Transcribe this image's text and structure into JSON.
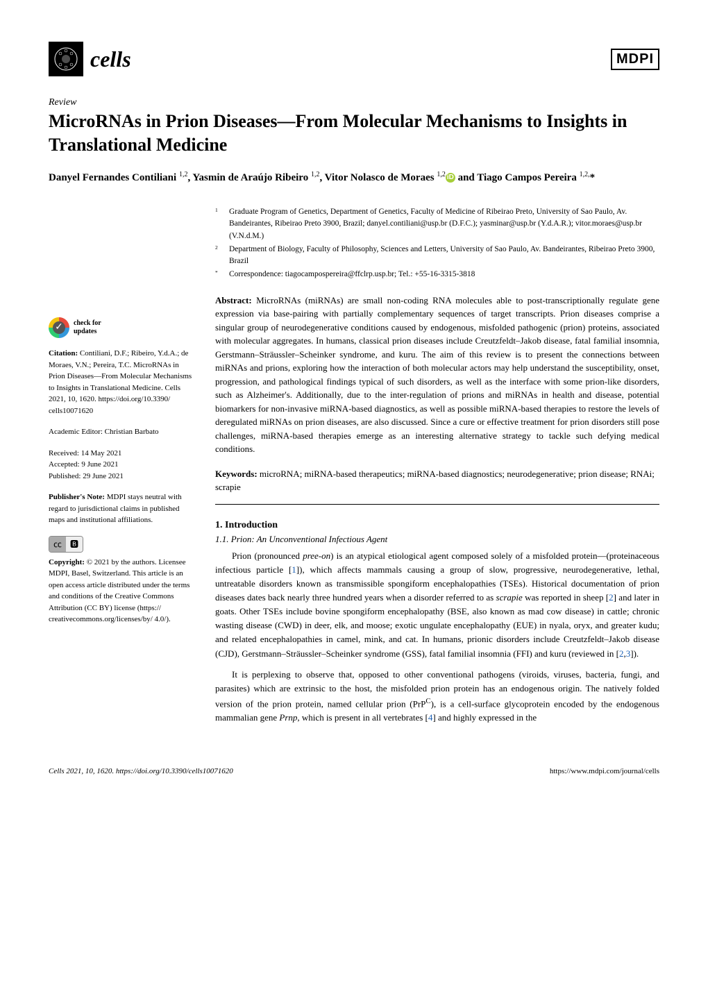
{
  "journal": {
    "name": "cells"
  },
  "publisher": {
    "name": "MDPI"
  },
  "article_type": "Review",
  "title": "MicroRNAs in Prion Diseases—From Molecular Mechanisms to Insights in Translational Medicine",
  "authors_html": "Danyel Fernandes Contiliani <sup>1,2</sup>, Yasmin de Araújo Ribeiro <sup>1,2</sup>, Vitor Nolasco de Moraes <sup>1,2</sup><span class='orcid'>iD</span> and Tiago Campos Pereira <sup>1,2,</sup>*",
  "affiliations": [
    {
      "num": "1",
      "text": "Graduate Program of Genetics, Department of Genetics, Faculty of Medicine of Ribeirao Preto, University of Sao Paulo, Av. Bandeirantes, Ribeirao Preto 3900, Brazil; danyel.contiliani@usp.br (D.F.C.); yasminar@usp.br (Y.d.A.R.); vitor.moraes@usp.br (V.N.d.M.)"
    },
    {
      "num": "2",
      "text": "Department of Biology, Faculty of Philosophy, Sciences and Letters, University of Sao Paulo, Av. Bandeirantes, Ribeirao Preto 3900, Brazil"
    },
    {
      "num": "*",
      "text": "Correspondence: tiagocampospereira@ffclrp.usp.br; Tel.: +55-16-3315-3818"
    }
  ],
  "abstract_label": "Abstract:",
  "abstract": "MicroRNAs (miRNAs) are small non-coding RNA molecules able to post-transcriptionally regulate gene expression via base-pairing with partially complementary sequences of target transcripts. Prion diseases comprise a singular group of neurodegenerative conditions caused by endogenous, misfolded pathogenic (prion) proteins, associated with molecular aggregates. In humans, classical prion diseases include Creutzfeldt–Jakob disease, fatal familial insomnia, Gerstmann–Sträussler–Scheinker syndrome, and kuru. The aim of this review is to present the connections between miRNAs and prions, exploring how the interaction of both molecular actors may help understand the susceptibility, onset, progression, and pathological findings typical of such disorders, as well as the interface with some prion-like disorders, such as Alzheimer's. Additionally, due to the inter-regulation of prions and miRNAs in health and disease, potential biomarkers for non-invasive miRNA-based diagnostics, as well as possible miRNA-based therapies to restore the levels of deregulated miRNAs on prion diseases, are also discussed. Since a cure or effective treatment for prion disorders still pose challenges, miRNA-based therapies emerge as an interesting alternative strategy to tackle such defying medical conditions.",
  "keywords_label": "Keywords:",
  "keywords": "microRNA; miRNA-based therapeutics; miRNA-based diagnostics; neurodegenerative; prion disease; RNAi; scrapie",
  "section1": {
    "heading": "1. Introduction",
    "sub": "1.1. Prion: An Unconventional Infectious Agent"
  },
  "para1": "Prion (pronounced pree-on) is an atypical etiological agent composed solely of a misfolded protein—(proteinaceous infectious particle [1]), which affects mammals causing a group of slow, progressive, neurodegenerative, lethal, untreatable disorders known as transmissible spongiform encephalopathies (TSEs). Historical documentation of prion diseases dates back nearly three hundred years when a disorder referred to as scrapie was reported in sheep [2] and later in goats. Other TSEs include bovine spongiform encephalopathy (BSE, also known as mad cow disease) in cattle; chronic wasting disease (CWD) in deer, elk, and moose; exotic ungulate encephalopathy (EUE) in nyala, oryx, and greater kudu; and related encephalopathies in camel, mink, and cat. In humans, prionic disorders include Creutzfeldt–Jakob disease (CJD), Gerstmann–Sträussler–Scheinker syndrome (GSS), fatal familial insomnia (FFI) and kuru (reviewed in [2,3]).",
  "para2": "It is perplexing to observe that, opposed to other conventional pathogens (viroids, viruses, bacteria, fungi, and parasites) which are extrinsic to the host, the misfolded prion protein has an endogenous origin. The natively folded version of the prion protein, named cellular prion (PrPC), is a cell-surface glycoprotein encoded by the endogenous mammalian gene Prnp, which is present in all vertebrates [4] and highly expressed in the",
  "sidebar": {
    "check_updates": "check for updates",
    "citation_label": "Citation:",
    "citation": "Contiliani, D.F.; Ribeiro, Y.d.A.; de Moraes, V.N.; Pereira, T.C. MicroRNAs in Prion Diseases—From Molecular Mechanisms to Insights in Translational Medicine. Cells 2021, 10, 1620. https://doi.org/10.3390/ cells10071620",
    "editor_label": "Academic Editor:",
    "editor": "Christian Barbato",
    "received": "Received: 14 May 2021",
    "accepted": "Accepted: 9 June 2021",
    "published": "Published: 29 June 2021",
    "pubnote_label": "Publisher's Note:",
    "pubnote": "MDPI stays neutral with regard to jurisdictional claims in published maps and institutional affiliations.",
    "copyright_label": "Copyright:",
    "copyright": "© 2021 by the authors. Licensee MDPI, Basel, Switzerland. This article is an open access article distributed under the terms and conditions of the Creative Commons Attribution (CC BY) license (https:// creativecommons.org/licenses/by/ 4.0/)."
  },
  "footer": {
    "left": "Cells 2021, 10, 1620. https://doi.org/10.3390/cells10071620",
    "right": "https://www.mdpi.com/journal/cells"
  },
  "colors": {
    "link": "#1a5fb4",
    "orcid": "#a6ce39"
  }
}
